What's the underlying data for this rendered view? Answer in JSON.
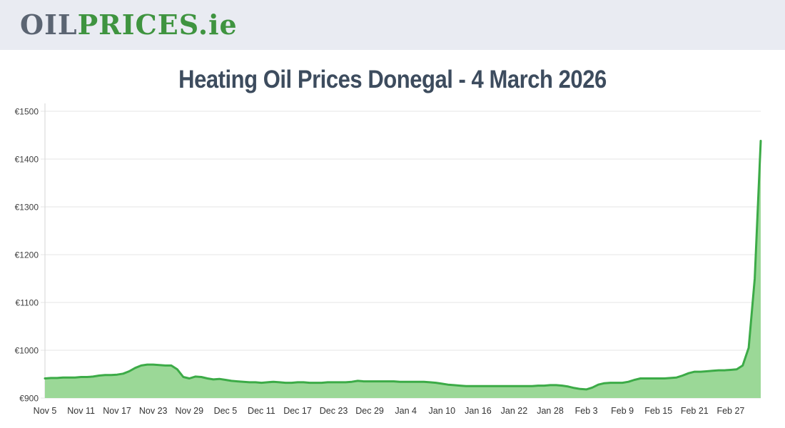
{
  "logo": {
    "oil": "OIL",
    "prices": "PRICES",
    "ie": ".ie"
  },
  "page": {
    "title": "Heating Oil Prices Donegal - 4 March 2026"
  },
  "chart_data": {
    "type": "area",
    "title": "Heating Oil Prices Donegal - 4 March 2026",
    "xlabel": "",
    "ylabel": "",
    "currency": "€",
    "ylim": [
      900,
      1500
    ],
    "y_ticks": [
      900,
      1000,
      1100,
      1200,
      1300,
      1400,
      1500
    ],
    "y_tick_labels": [
      "€900",
      "€1000",
      "€1100",
      "€1200",
      "€1300",
      "€1400",
      "€1500"
    ],
    "x_tick_indices": [
      0,
      6,
      12,
      18,
      24,
      30,
      36,
      42,
      48,
      54,
      60,
      66,
      72,
      78,
      84,
      90,
      96,
      102,
      108,
      114
    ],
    "x_tick_labels": [
      "Nov 5",
      "Nov 11",
      "Nov 17",
      "Nov 23",
      "Nov 29",
      "Dec 5",
      "Dec 11",
      "Dec 17",
      "Dec 23",
      "Dec 29",
      "Jan 4",
      "Jan 10",
      "Jan 16",
      "Jan 22",
      "Jan 28",
      "Feb 3",
      "Feb 9",
      "Feb 15",
      "Feb 21",
      "Feb 27"
    ],
    "grid": true,
    "legend": false,
    "colors": {
      "line": "#3cab47",
      "fill": "#9bd897",
      "grid": "#e5e5e5",
      "axis": "#d6d6d6",
      "tick_text": "#3f3f3f"
    },
    "dates": [
      "Nov 5",
      "Nov 6",
      "Nov 7",
      "Nov 8",
      "Nov 9",
      "Nov 10",
      "Nov 11",
      "Nov 12",
      "Nov 13",
      "Nov 14",
      "Nov 15",
      "Nov 16",
      "Nov 17",
      "Nov 18",
      "Nov 19",
      "Nov 20",
      "Nov 21",
      "Nov 22",
      "Nov 23",
      "Nov 24",
      "Nov 25",
      "Nov 26",
      "Nov 27",
      "Nov 28",
      "Nov 29",
      "Nov 30",
      "Dec 1",
      "Dec 2",
      "Dec 3",
      "Dec 4",
      "Dec 5",
      "Dec 6",
      "Dec 7",
      "Dec 8",
      "Dec 9",
      "Dec 10",
      "Dec 11",
      "Dec 12",
      "Dec 13",
      "Dec 14",
      "Dec 15",
      "Dec 16",
      "Dec 17",
      "Dec 18",
      "Dec 19",
      "Dec 20",
      "Dec 21",
      "Dec 22",
      "Dec 23",
      "Dec 24",
      "Dec 25",
      "Dec 26",
      "Dec 27",
      "Dec 28",
      "Dec 29",
      "Dec 30",
      "Dec 31",
      "Jan 1",
      "Jan 2",
      "Jan 3",
      "Jan 4",
      "Jan 5",
      "Jan 6",
      "Jan 7",
      "Jan 8",
      "Jan 9",
      "Jan 10",
      "Jan 11",
      "Jan 12",
      "Jan 13",
      "Jan 14",
      "Jan 15",
      "Jan 16",
      "Jan 17",
      "Jan 18",
      "Jan 19",
      "Jan 20",
      "Jan 21",
      "Jan 22",
      "Jan 23",
      "Jan 24",
      "Jan 25",
      "Jan 26",
      "Jan 27",
      "Jan 28",
      "Jan 29",
      "Jan 30",
      "Jan 31",
      "Feb 1",
      "Feb 2",
      "Feb 3",
      "Feb 4",
      "Feb 5",
      "Feb 6",
      "Feb 7",
      "Feb 8",
      "Feb 9",
      "Feb 10",
      "Feb 11",
      "Feb 12",
      "Feb 13",
      "Feb 14",
      "Feb 15",
      "Feb 16",
      "Feb 17",
      "Feb 18",
      "Feb 19",
      "Feb 20",
      "Feb 21",
      "Feb 22",
      "Feb 23",
      "Feb 24",
      "Feb 25",
      "Feb 26",
      "Feb 27",
      "Feb 28",
      "Mar 1",
      "Mar 2",
      "Mar 3",
      "Mar 4"
    ],
    "values": [
      941,
      942,
      942,
      943,
      943,
      943,
      944,
      944,
      945,
      947,
      948,
      948,
      949,
      951,
      956,
      963,
      968,
      970,
      970,
      969,
      968,
      968,
      960,
      944,
      941,
      945,
      944,
      941,
      939,
      940,
      938,
      936,
      935,
      934,
      933,
      933,
      932,
      933,
      934,
      933,
      932,
      932,
      933,
      933,
      932,
      932,
      932,
      933,
      933,
      933,
      933,
      934,
      936,
      935,
      935,
      935,
      935,
      935,
      935,
      934,
      934,
      934,
      934,
      934,
      933,
      932,
      930,
      928,
      927,
      926,
      925,
      925,
      925,
      925,
      925,
      925,
      925,
      925,
      925,
      925,
      925,
      925,
      926,
      926,
      927,
      927,
      926,
      924,
      921,
      919,
      918,
      922,
      928,
      931,
      932,
      932,
      932,
      934,
      938,
      941,
      941,
      941,
      941,
      941,
      942,
      943,
      947,
      952,
      955,
      955,
      956,
      957,
      958,
      958,
      959,
      960,
      968,
      1005,
      1150,
      1438
    ]
  }
}
